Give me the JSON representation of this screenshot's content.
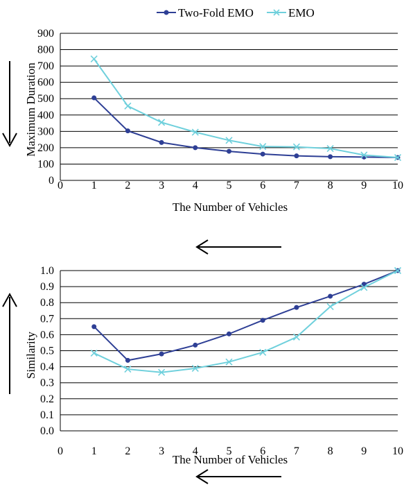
{
  "colors": {
    "two_fold": "#2e3f95",
    "emo": "#6fd0dc"
  },
  "legend": {
    "items": [
      "Two-Fold EMO",
      "EMO"
    ]
  },
  "chart_data": [
    {
      "type": "line",
      "xlabel": "The Number of Vehicles",
      "ylabel": "Maximum Duration",
      "x_ticks": [
        "0",
        "1",
        "2",
        "3",
        "4",
        "5",
        "6",
        "7",
        "8",
        "9",
        "10"
      ],
      "y_ticks": [
        "0",
        "100",
        "200",
        "300",
        "400",
        "500",
        "600",
        "700",
        "800",
        "900"
      ],
      "xlim": [
        0,
        10
      ],
      "ylim": [
        0,
        900
      ],
      "grid": "horizontal",
      "legend_position": "top",
      "x": [
        1,
        2,
        3,
        4,
        5,
        6,
        7,
        8,
        9,
        10
      ],
      "series": [
        {
          "name": "Two-Fold EMO",
          "values": [
            505,
            303,
            232,
            200,
            178,
            161,
            150,
            145,
            143,
            140
          ]
        },
        {
          "name": "EMO",
          "values": [
            743,
            455,
            355,
            295,
            245,
            207,
            205,
            195,
            155,
            140
          ]
        }
      ]
    },
    {
      "type": "line",
      "xlabel": "The Number of Vehicles",
      "ylabel": "Similarity",
      "x_ticks": [
        "0",
        "1",
        "2",
        "3",
        "4",
        "5",
        "6",
        "7",
        "8",
        "9",
        "10"
      ],
      "y_ticks": [
        "0.0",
        "0.1",
        "0.2",
        "0.3",
        "0.4",
        "0.5",
        "0.6",
        "0.7",
        "0.8",
        "0.9",
        "1.0"
      ],
      "xlim": [
        0,
        10
      ],
      "ylim": [
        0,
        1.0
      ],
      "grid": "horizontal",
      "x": [
        1,
        2,
        3,
        4,
        5,
        6,
        7,
        8,
        9,
        10
      ],
      "series": [
        {
          "name": "Two-Fold EMO",
          "values": [
            0.65,
            0.44,
            0.48,
            0.535,
            0.605,
            0.69,
            0.77,
            0.84,
            0.915,
            1.0
          ]
        },
        {
          "name": "EMO",
          "values": [
            0.485,
            0.385,
            0.365,
            0.39,
            0.43,
            0.49,
            0.585,
            0.775,
            0.895,
            1.0
          ]
        }
      ]
    }
  ]
}
